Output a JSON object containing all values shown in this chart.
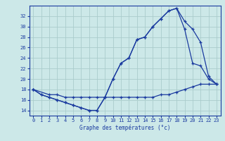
{
  "xlabel": "Graphe des températures (°c)",
  "bg_color": "#cce8e8",
  "line_color": "#1a3a9f",
  "grid_color": "#aacccc",
  "yticks": [
    14,
    16,
    18,
    20,
    22,
    24,
    26,
    28,
    30,
    32
  ],
  "xticks": [
    0,
    1,
    2,
    3,
    4,
    5,
    6,
    7,
    8,
    9,
    10,
    11,
    12,
    13,
    14,
    15,
    16,
    17,
    18,
    19,
    20,
    21,
    22,
    23
  ],
  "ylim": [
    13.0,
    34.0
  ],
  "xlim": [
    -0.5,
    23.5
  ],
  "line1_x": [
    0,
    1,
    2,
    3,
    4,
    5,
    6,
    7,
    8,
    9,
    10,
    11,
    12,
    13,
    14,
    15,
    16,
    17,
    18,
    19,
    20,
    21,
    22,
    23
  ],
  "line1_y": [
    18,
    17,
    16.5,
    16,
    15.5,
    15,
    14.5,
    14,
    14,
    16.5,
    20,
    23,
    24,
    27.5,
    28,
    30,
    31.5,
    33,
    33.5,
    31,
    29.5,
    27,
    20.5,
    19
  ],
  "line2_x": [
    0,
    1,
    2,
    3,
    4,
    5,
    6,
    7,
    8,
    9,
    10,
    11,
    12,
    13,
    14,
    15,
    16,
    17,
    18,
    19,
    20,
    21,
    22,
    23
  ],
  "line2_y": [
    18,
    17,
    16.5,
    16,
    15.5,
    15,
    14.5,
    14,
    14,
    16.5,
    20,
    23,
    24,
    27.5,
    28,
    30,
    31.5,
    33,
    33.5,
    29.5,
    23,
    22.5,
    20.0,
    19
  ],
  "line3_x": [
    0,
    2,
    3,
    4,
    5,
    6,
    7,
    8,
    9,
    10,
    11,
    12,
    13,
    14,
    15,
    16,
    17,
    18,
    19,
    20,
    21,
    22,
    23
  ],
  "line3_y": [
    18,
    17,
    17,
    16.5,
    16.5,
    16.5,
    16.5,
    16.5,
    16.5,
    16.5,
    16.5,
    16.5,
    16.5,
    16.5,
    16.5,
    17,
    17,
    17.5,
    18,
    18.5,
    19,
    19,
    19
  ]
}
